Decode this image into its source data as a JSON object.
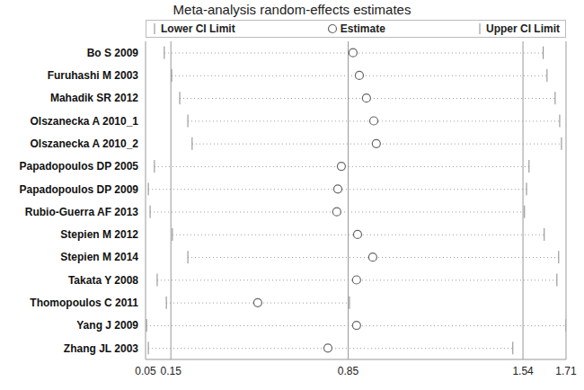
{
  "chart_data": {
    "type": "forest",
    "title": "Meta-analysis random-effects estimates",
    "categories": [
      "Bo S 2009",
      "Furuhashi M 2003",
      "Mahadik SR 2012",
      "Olszanecka A 2010_1",
      "Olszanecka A 2010_2",
      "Papadopoulos DP 2005",
      "Papadopoulos DP 2009",
      "Rubio-Guerra AF 2013",
      "Stepien M 2012",
      "Stepien M 2014",
      "Takata Y 2008",
      "Thomopoulos C 2011",
      "Yang J 2009",
      "Zhang JL 2003"
    ],
    "series": [
      {
        "name": "Lower CI Limit",
        "color": "#888888",
        "marker": "line",
        "values": [
          0.124,
          0.153,
          0.185,
          0.217,
          0.234,
          0.085,
          0.061,
          0.068,
          0.156,
          0.217,
          0.096,
          0.132,
          0.054,
          0.061
        ]
      },
      {
        "name": "Estimate",
        "color": "#666666",
        "marker": "circle",
        "values": [
          0.869,
          0.894,
          0.922,
          0.951,
          0.961,
          0.823,
          0.809,
          0.805,
          0.887,
          0.947,
          0.883,
          0.493,
          0.883,
          0.77
        ]
      },
      {
        "name": "Upper CI Limit",
        "color": "#888888",
        "marker": "line",
        "values": [
          1.62,
          1.635,
          1.667,
          1.685,
          1.692,
          1.564,
          1.554,
          1.546,
          1.624,
          1.681,
          1.674,
          0.855,
          1.71,
          1.5
        ]
      }
    ],
    "xlim": [
      0.05,
      1.71
    ],
    "xticks": [
      0.05,
      0.15,
      0.85,
      1.54,
      1.71
    ],
    "grid": true,
    "legend": "top",
    "line_style": "dotted"
  }
}
